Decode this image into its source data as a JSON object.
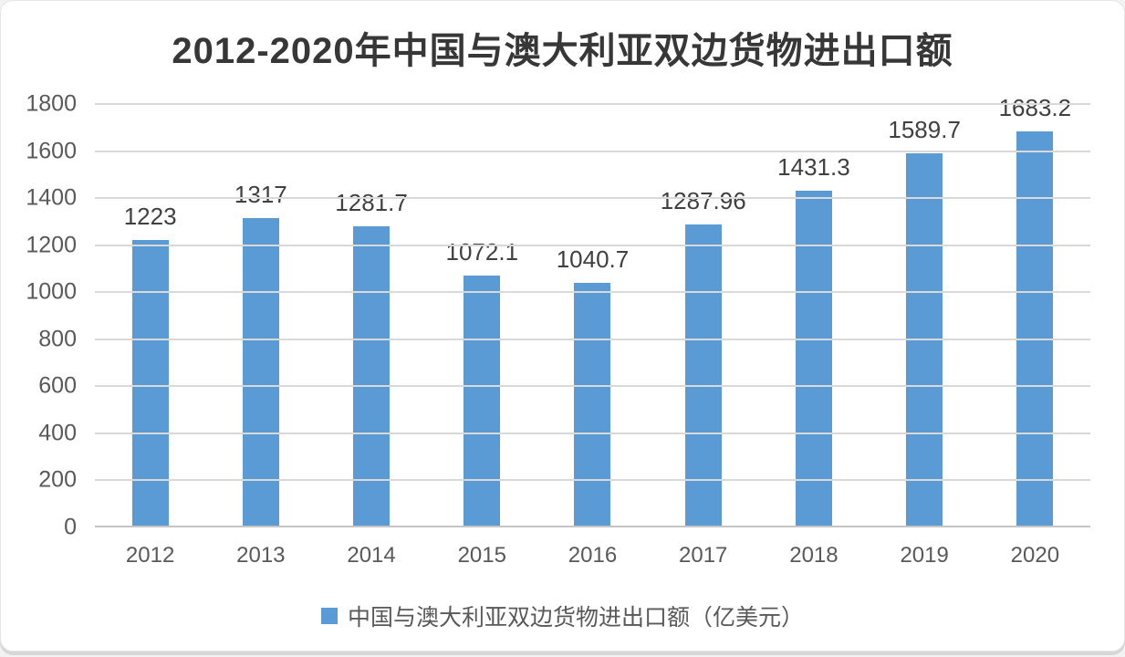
{
  "chart_data": {
    "type": "bar",
    "title": "2012-2020年中国与澳大利亚双边货物进出口额",
    "categories": [
      "2012",
      "2013",
      "2014",
      "2015",
      "2016",
      "2017",
      "2018",
      "2019",
      "2020"
    ],
    "values": [
      1223,
      1317,
      1281.7,
      1072.1,
      1040.7,
      1287.96,
      1431.3,
      1589.7,
      1683.2
    ],
    "value_labels": [
      "1223",
      "1317",
      "1281.7",
      "1072.1",
      "1040.7",
      "1287.96",
      "1431.3",
      "1589.7",
      "1683.2"
    ],
    "series_name": "中国与澳大利亚双边货物进出口额（亿美元）",
    "legend": "中国与澳大利亚双边货物进出口额（亿美元）",
    "legend_position": "bottom",
    "xlabel": "",
    "ylabel": "",
    "ylim": [
      0,
      1800
    ],
    "ytick_step": 200,
    "yticks": [
      0,
      200,
      400,
      600,
      800,
      1000,
      1200,
      1400,
      1600,
      1800
    ],
    "grid": true,
    "colors": {
      "bar": "#5B9BD5",
      "gridline": "#D9D9D9",
      "axis_line": "#C4C4C4",
      "title_text": "#373737",
      "tick_text": "#595959",
      "value_label_text": "#404040"
    }
  }
}
